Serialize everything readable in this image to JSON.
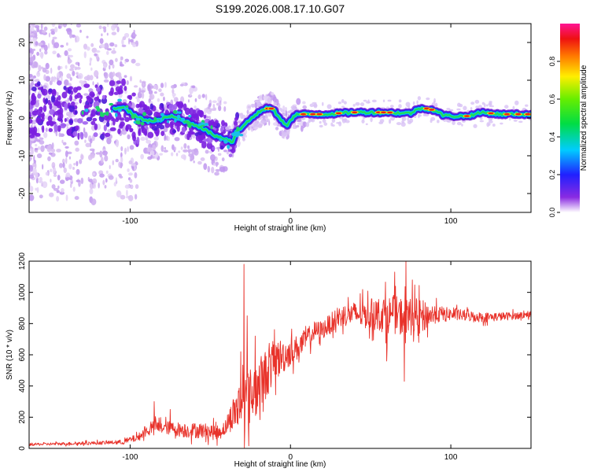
{
  "title": "S199.2026.008.17.10.G07",
  "colors": {
    "snr_line": "#e8322a",
    "frame": "#000000",
    "background": "#ffffff"
  },
  "chart_data": [
    {
      "type": "heatmap",
      "xlabel": "Height of straight line (km)",
      "ylabel": "Frequency (Hz)",
      "xlim": [
        -163,
        150
      ],
      "ylim": [
        -25,
        25
      ],
      "x_ticks": [
        -100,
        0,
        100
      ],
      "y_ticks": [
        -20,
        -10,
        0,
        10,
        20
      ],
      "colorbar": {
        "label": "Normalized spectral amplitude",
        "range": [
          0,
          1
        ],
        "ticks": [
          "0.0",
          "0.2",
          "0.4",
          "0.6",
          "0.8"
        ],
        "tick_values": [
          0,
          0.2,
          0.4,
          0.6,
          0.8
        ]
      },
      "ridge": {
        "x": [
          -163,
          -140,
          -120,
          -105,
          -95,
          -85,
          -75,
          -65,
          -58,
          -50,
          -45,
          -40,
          -36,
          -34,
          -32,
          -28,
          -24,
          -20,
          -15,
          -11,
          -8,
          -5,
          -2,
          0,
          4,
          10,
          20,
          40,
          60,
          70,
          75,
          80,
          85,
          90,
          95,
          100,
          110,
          120,
          130,
          140,
          150
        ],
        "freq_hz": [
          2.0,
          2.5,
          1.5,
          3.0,
          0.0,
          -1.0,
          0.5,
          -1.0,
          -2.0,
          -4.0,
          -5.0,
          -5.5,
          -6.5,
          -3.5,
          -3.0,
          -1.5,
          0.0,
          1.5,
          2.5,
          2.5,
          0.5,
          -1.0,
          -1.8,
          -0.5,
          1.0,
          1.0,
          1.0,
          1.5,
          1.5,
          1.3,
          1.3,
          2.5,
          2.5,
          2.0,
          0.8,
          0.5,
          0.5,
          1.5,
          1.0,
          1.0,
          1.0
        ]
      }
    },
    {
      "type": "line",
      "xlabel": "Height of straight line (km)",
      "ylabel": "SNR (10 * v/v)",
      "xlim": [
        -163,
        150
      ],
      "ylim": [
        0,
        1200
      ],
      "x_ticks": [
        -100,
        0,
        100
      ],
      "y_ticks": [
        0,
        200,
        400,
        600,
        800,
        1000,
        1200
      ],
      "series": [
        {
          "name": "SNR",
          "trend": {
            "x": [
              -163,
              -120,
              -105,
              -95,
              -90,
              -85,
              -75,
              -65,
              -55,
              -45,
              -40,
              -35,
              -30,
              -25,
              -20,
              -15,
              -10,
              -5,
              0,
              5,
              10,
              15,
              20,
              25,
              30,
              35,
              40,
              50,
              60,
              70,
              80,
              90,
              100,
              120,
              140,
              150
            ],
            "y": [
              25,
              35,
              40,
              70,
              110,
              140,
              130,
              115,
              115,
              100,
              140,
              240,
              290,
              330,
              400,
              480,
              560,
              590,
              620,
              650,
              700,
              750,
              760,
              800,
              840,
              860,
              860,
              860,
              860,
              850,
              840,
              860,
              860,
              840,
              850,
              860
            ]
          },
          "noise_amplitude": {
            "x": [
              -163,
              -110,
              -95,
              -85,
              -60,
              -40,
              -35,
              -30,
              -20,
              -10,
              0,
              10,
              20,
              30,
              40,
              60,
              80,
              90,
              100,
              150
            ],
            "y": [
              8,
              12,
              25,
              40,
              50,
              50,
              120,
              200,
              180,
              140,
              90,
              70,
              60,
              70,
              80,
              120,
              120,
              60,
              40,
              20
            ]
          },
          "peaks": [
            {
              "x": -29,
              "y": 1180
            },
            {
              "x": -27,
              "y": 850
            },
            {
              "x": -22,
              "y": 720
            },
            {
              "x": -31,
              "y": 620
            },
            {
              "x": 65,
              "y": 1130
            },
            {
              "x": 72,
              "y": 1200
            },
            {
              "x": 71,
              "y": 430
            },
            {
              "x": 76,
              "y": 1080
            },
            {
              "x": 60,
              "y": 560
            },
            {
              "x": -85,
              "y": 300
            },
            {
              "x": -75,
              "y": 250
            }
          ]
        }
      ]
    }
  ]
}
